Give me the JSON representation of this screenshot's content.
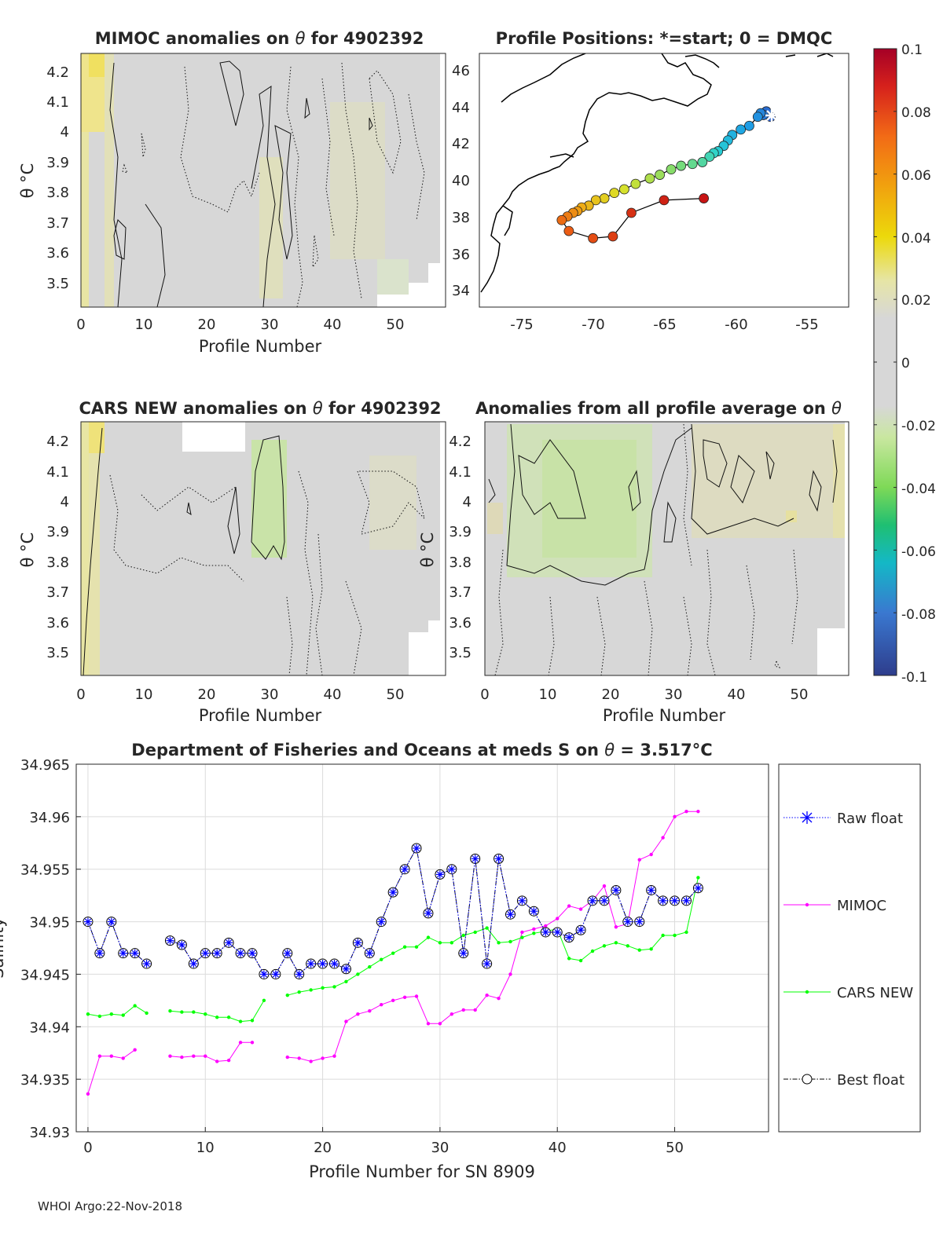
{
  "footer": "WHOI Argo:22-Nov-2018",
  "colors": {
    "raw": "#0000ff",
    "best": "#000000",
    "mimoc": "#ff00ff",
    "cars": "#00ff00",
    "coast": "#000000",
    "neutral": "#d7d7d7",
    "grid": "#d0d0d0"
  },
  "colorbar": {
    "min": -0.1,
    "max": 0.1,
    "tick_labels": [
      "0.1",
      "0.08",
      "0.06",
      "0.04",
      "0.02",
      "0",
      "-0.02",
      "-0.04",
      "-0.06",
      "-0.08",
      "-0.1"
    ]
  },
  "chart_data": [
    {
      "id": "mimoc_anomalies",
      "type": "heatmap",
      "title_prefix": "MIMOC anomalies on",
      "title_theta": "θ",
      "title_suffix": " for 4902392",
      "xlabel": "Profile Number",
      "ylabel": "θ °C",
      "xlim": [
        -1,
        57
      ],
      "ylim": [
        3.42,
        4.26
      ],
      "xticks": [
        "0",
        "10",
        "20",
        "30",
        "40",
        "50"
      ],
      "yticks": [
        "4.2",
        "4.1",
        "4",
        "3.9",
        "3.8",
        "3.7",
        "3.6",
        "3.5"
      ],
      "bands": [
        {
          "from": 0,
          "to": 1,
          "value": 0.03
        },
        {
          "from": 1,
          "to": 3,
          "value": 0.025
        },
        {
          "from": 3,
          "to": 5,
          "value": 0.012
        },
        {
          "from": 29,
          "to": 35,
          "value": 0.008
        },
        {
          "from": 40,
          "to": 52,
          "value": 0.005
        }
      ],
      "dense_stats": [
        {
          "from": 3,
          "to": 5,
          "value": 0.0
        },
        {
          "from": 6,
          "to": 13,
          "value": 0.005
        },
        {
          "from": 13,
          "to": 22,
          "value": 0.003
        },
        {
          "from": 23,
          "to": 30,
          "value": 0.002
        }
      ]
    },
    {
      "id": "profile_positions",
      "type": "scatter",
      "title": "Profile Positions: *=start; 0 = DMQC",
      "xlim": [
        -78,
        -52
      ],
      "ylim": [
        33,
        47
      ],
      "xticks": [
        "-75",
        "-70",
        "-65",
        "-60",
        "-55"
      ],
      "yticks": [
        "46",
        "44",
        "42",
        "40",
        "38",
        "36",
        "34"
      ],
      "start": {
        "lon": -57.5,
        "lat": 43.5
      },
      "track_lon": [
        -57.5,
        -57.8,
        -58.0,
        -58.2,
        -58.4,
        -59.0,
        -59.6,
        -60.2,
        -60.5,
        -60.8,
        -61.2,
        -61.5,
        -61.8,
        -62.3,
        -63.0,
        -63.8,
        -64.5,
        -65.3,
        -66.0,
        -67.0,
        -67.8,
        -68.5,
        -69.2,
        -69.8,
        -70.3,
        -70.8,
        -71.1,
        -71.4,
        -71.8,
        -72.2,
        -71.7,
        -70.0,
        -68.6,
        -67.3,
        -65.0,
        -62.2
      ],
      "track_lat": [
        43.5,
        43.8,
        43.6,
        43.7,
        43.5,
        43.0,
        42.8,
        42.5,
        42.2,
        41.9,
        41.6,
        41.5,
        41.3,
        41.0,
        40.9,
        40.8,
        40.6,
        40.3,
        40.1,
        39.8,
        39.5,
        39.3,
        39.0,
        38.9,
        38.6,
        38.5,
        38.3,
        38.2,
        38.0,
        37.8,
        37.2,
        36.8,
        36.9,
        38.2,
        38.9,
        39.0
      ]
    },
    {
      "id": "cars_new_anomalies",
      "type": "heatmap",
      "title_prefix": "CARS NEW anomalies on",
      "title_theta": "θ",
      "title_suffix": " for 4902392",
      "xlabel": "Profile Number",
      "ylabel": "θ °C",
      "xlim": [
        -1,
        57
      ],
      "ylim": [
        3.42,
        4.26
      ],
      "xticks": [
        "0",
        "10",
        "20",
        "30",
        "40",
        "50"
      ],
      "yticks": [
        "4.2",
        "4.1",
        "4",
        "3.9",
        "3.8",
        "3.7",
        "3.6",
        "3.5"
      ],
      "bands": [
        {
          "from": 0,
          "to": 1,
          "value": 0.03
        },
        {
          "from": 1,
          "to": 3,
          "value": 0.02
        },
        {
          "from": 3,
          "to": 5,
          "value": 0.01
        },
        {
          "from": 28,
          "to": 32,
          "value": -0.012
        },
        {
          "from": 45,
          "to": 53,
          "value": 0.003
        }
      ]
    },
    {
      "id": "all_profile_anomalies",
      "type": "heatmap",
      "title_prefix": "Anomalies from all profile average on",
      "title_theta": "θ",
      "title_suffix": "",
      "xlabel": "Profile Number",
      "ylabel": "θ °C",
      "xlim": [
        -1,
        57
      ],
      "ylim": [
        3.42,
        4.26
      ],
      "xticks": [
        "0",
        "10",
        "20",
        "30",
        "40",
        "50"
      ],
      "yticks": [
        "4.2",
        "4.1",
        "4",
        "3.9",
        "3.8",
        "3.7",
        "3.6",
        "3.5"
      ],
      "bands": [
        {
          "from": 3,
          "to": 27,
          "value": -0.012
        },
        {
          "from": 10,
          "to": 28,
          "value": -0.015
        },
        {
          "from": 35,
          "to": 48,
          "value": 0.006
        },
        {
          "from": 48,
          "to": 56,
          "value": 0.008
        }
      ]
    },
    {
      "id": "salinity_line",
      "type": "line",
      "title_prefix": "Department of Fisheries and Oceans at meds S on",
      "title_theta": "θ",
      "title_suffix": " = 3.517",
      "title_unit": "°C",
      "xlabel": "Profile Number for SN 8909",
      "ylabel": "Salinity",
      "xlim": [
        -1,
        58
      ],
      "ylim": [
        34.93,
        34.965
      ],
      "xticks": [
        0,
        10,
        20,
        30,
        40,
        50
      ],
      "yticks": [
        34.93,
        34.935,
        34.94,
        34.945,
        34.95,
        34.955,
        34.96,
        34.965
      ],
      "ytick_labels": [
        "34.93",
        "34.935",
        "34.94",
        "34.945",
        "34.95",
        "34.955",
        "34.96",
        "34.965"
      ],
      "grid": true,
      "legend_position": "outside-right",
      "x": [
        0,
        1,
        2,
        3,
        4,
        5,
        6,
        7,
        8,
        9,
        10,
        11,
        12,
        13,
        14,
        15,
        16,
        17,
        18,
        19,
        20,
        21,
        22,
        23,
        24,
        25,
        26,
        27,
        28,
        29,
        30,
        31,
        32,
        33,
        34,
        35,
        36,
        37,
        38,
        39,
        40,
        41,
        42,
        43,
        44,
        45,
        46,
        47,
        48,
        49,
        50,
        51,
        52
      ],
      "series": [
        {
          "name": "Raw float",
          "style": "raw",
          "values": [
            34.95,
            34.947,
            34.95,
            34.947,
            34.947,
            34.946,
            null,
            34.9482,
            34.9478,
            34.946,
            34.947,
            34.947,
            34.948,
            34.947,
            34.947,
            34.945,
            34.945,
            34.947,
            34.945,
            34.946,
            34.946,
            34.946,
            34.9455,
            34.948,
            34.947,
            34.95,
            34.9528,
            34.955,
            34.957,
            34.9508,
            34.9545,
            34.955,
            34.947,
            34.956,
            34.946,
            34.956,
            34.9507,
            34.952,
            34.951,
            34.949,
            34.949,
            34.9485,
            34.9492,
            34.952,
            34.952,
            34.953,
            34.95,
            34.95,
            34.953,
            34.952,
            34.952,
            34.952,
            34.9532
          ]
        },
        {
          "name": "MIMOC",
          "style": "mimoc",
          "values": [
            34.9336,
            34.9372,
            34.9372,
            34.937,
            34.9378,
            null,
            null,
            34.9372,
            34.9371,
            34.9372,
            34.9372,
            34.9367,
            34.9368,
            34.9385,
            34.9385,
            null,
            null,
            34.9371,
            34.937,
            34.9367,
            34.937,
            34.9372,
            34.9405,
            34.9412,
            34.9415,
            34.9421,
            34.9425,
            34.9428,
            34.9429,
            34.9403,
            34.9403,
            34.9412,
            34.9416,
            34.9416,
            34.943,
            34.9427,
            34.945,
            34.949,
            34.9493,
            34.9496,
            34.9503,
            34.9515,
            34.9512,
            34.952,
            34.9534,
            34.9495,
            34.9498,
            34.9559,
            34.9564,
            34.958,
            34.96,
            34.9605,
            34.9605
          ]
        },
        {
          "name": "CARS NEW",
          "style": "cars",
          "values": [
            34.9412,
            34.941,
            34.9412,
            34.9411,
            34.942,
            34.9413,
            null,
            34.9415,
            34.9414,
            34.9414,
            34.9412,
            34.9409,
            34.9409,
            34.9405,
            34.9406,
            34.9425,
            null,
            34.943,
            34.9433,
            34.9435,
            34.9437,
            34.9438,
            34.9443,
            34.945,
            34.9457,
            34.9464,
            34.947,
            34.9476,
            34.9476,
            34.9485,
            34.948,
            34.948,
            34.9487,
            34.949,
            34.9494,
            34.948,
            34.9481,
            34.9485,
            34.9489,
            34.9491,
            34.9493,
            34.9465,
            34.9463,
            34.9472,
            34.9477,
            34.948,
            34.9477,
            34.9473,
            34.9474,
            34.9487,
            34.9487,
            34.949,
            34.9542
          ]
        },
        {
          "name": "Best float",
          "style": "best",
          "values": [
            34.95,
            34.947,
            34.95,
            34.947,
            34.947,
            34.946,
            null,
            34.9482,
            34.9478,
            34.946,
            34.947,
            34.947,
            34.948,
            34.947,
            34.947,
            34.945,
            34.945,
            34.947,
            34.945,
            34.946,
            34.946,
            34.946,
            34.9455,
            34.948,
            34.947,
            34.95,
            34.9528,
            34.955,
            34.957,
            34.9508,
            34.9545,
            34.955,
            34.947,
            34.956,
            34.946,
            34.956,
            34.9507,
            34.952,
            34.951,
            34.949,
            34.949,
            34.9485,
            34.9492,
            34.952,
            34.952,
            34.953,
            34.95,
            34.95,
            34.953,
            34.952,
            34.952,
            34.952,
            34.9532
          ]
        }
      ]
    }
  ]
}
